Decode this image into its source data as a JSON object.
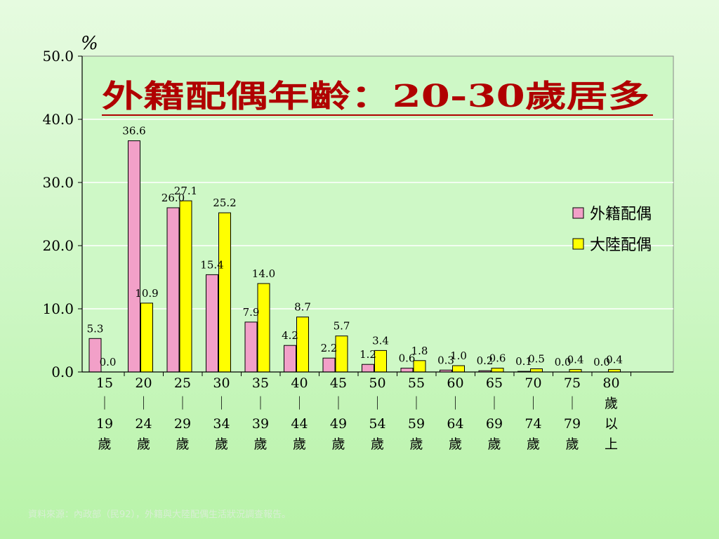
{
  "title": "外籍配偶年齡：20-30歲居多",
  "source": "資料來源：內政部（民92），外籍與大陸配偶生活狀況調查報告。",
  "colors": {
    "series1": "#f2a0c8",
    "series2": "#ffff00",
    "title": "#b00000"
  },
  "chart_data": {
    "type": "bar",
    "ylabel": "%",
    "ylim": [
      0,
      50
    ],
    "yticks": [
      "0.0",
      "10.0",
      "20.0",
      "30.0",
      "40.0",
      "50.0"
    ],
    "grid": true,
    "legend": "right",
    "categories": [
      [
        "15",
        "｜",
        "19",
        "歲"
      ],
      [
        "20",
        "｜",
        "24",
        "歲"
      ],
      [
        "25",
        "｜",
        "29",
        "歲"
      ],
      [
        "30",
        "｜",
        "34",
        "歲"
      ],
      [
        "35",
        "｜",
        "39",
        "歲"
      ],
      [
        "40",
        "｜",
        "44",
        "歲"
      ],
      [
        "45",
        "｜",
        "49",
        "歲"
      ],
      [
        "50",
        "｜",
        "54",
        "歲"
      ],
      [
        "55",
        "｜",
        "59",
        "歲"
      ],
      [
        "60",
        "｜",
        "64",
        "歲"
      ],
      [
        "65",
        "｜",
        "69",
        "歲"
      ],
      [
        "70",
        "｜",
        "74",
        "歲"
      ],
      [
        "75",
        "｜",
        "79",
        "歲"
      ],
      [
        "80",
        "歲",
        "以",
        "上"
      ]
    ],
    "series": [
      {
        "name": "外籍配偶",
        "values": [
          5.3,
          36.6,
          26.0,
          15.4,
          7.9,
          4.2,
          2.2,
          1.2,
          0.6,
          0.3,
          0.2,
          0.1,
          0.0,
          0.0
        ],
        "labels": [
          "5.3",
          "36.6",
          "26.0",
          "15.4",
          "7.9",
          "4.2",
          "2.2",
          "1.2",
          "0.6",
          "0.3",
          "0.2",
          "0.1",
          "0.0",
          "0.0"
        ]
      },
      {
        "name": "大陸配偶",
        "values": [
          0.0,
          10.9,
          27.1,
          25.2,
          14.0,
          8.7,
          5.7,
          3.4,
          1.8,
          1.0,
          0.6,
          0.5,
          0.4,
          0.4
        ],
        "labels": [
          "0.0",
          "10.9",
          "27.1",
          "25.2",
          "14.0",
          "8.7",
          "5.7",
          "3.4",
          "1.8",
          "1.0",
          "0.6",
          "0.5",
          "0.4",
          "0.4"
        ]
      }
    ]
  }
}
